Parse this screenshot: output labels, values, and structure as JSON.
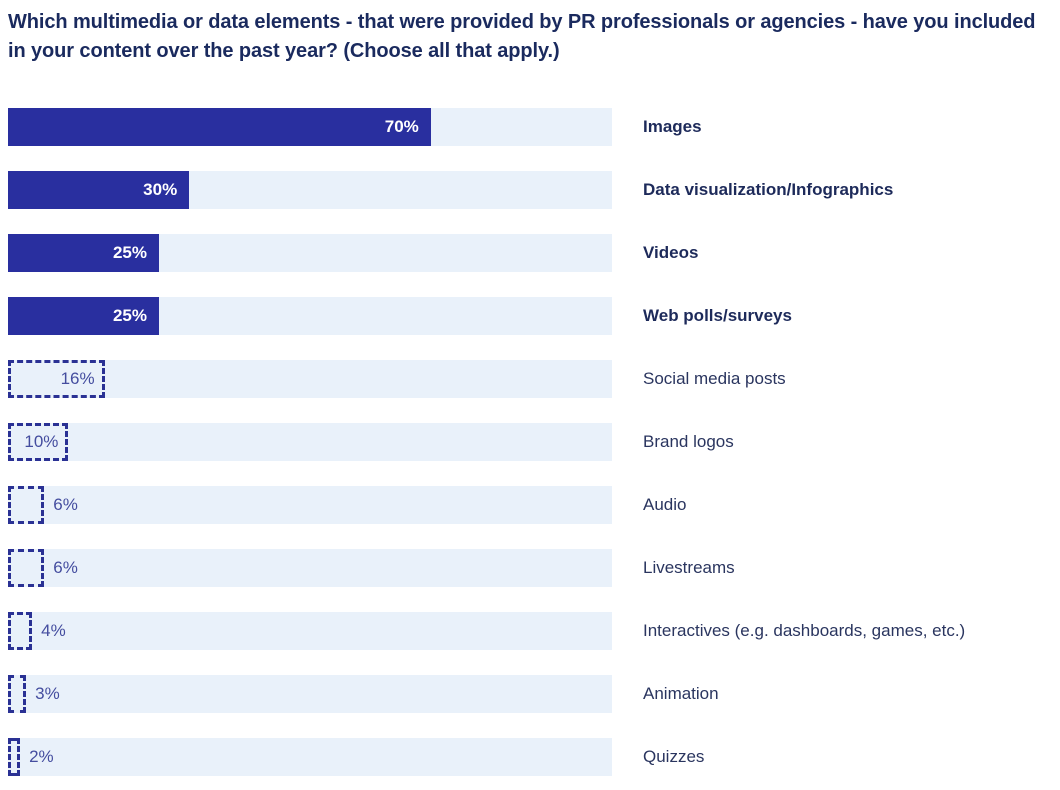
{
  "title": "Which multimedia or data elements - that were provided by PR professionals or agencies - have you included in your content over the past year? (Choose all that apply.)",
  "colors": {
    "title_text": "#1a2a5e",
    "bar_fill_solid": "#292f9f",
    "bar_track": "#e9f1fa",
    "bar_dashed_border": "#2a3194",
    "value_text_on_solid": "#ffffff",
    "value_text_dashed": "#444d9f",
    "category_bold_text": "#1d2a5a",
    "category_regular_text": "#2a355f",
    "background": "#ffffff"
  },
  "chart_data": {
    "type": "bar",
    "orientation": "horizontal",
    "title": "Which multimedia or data elements - that were provided by PR professionals or agencies - have you included in your content over the past year? (Choose all that apply.)",
    "xlabel": "",
    "ylabel": "",
    "xlim": [
      0,
      100
    ],
    "grid": false,
    "legend": false,
    "categories": [
      "Images",
      "Data visualization/Infographics",
      "Videos",
      "Web polls/surveys",
      "Social media posts",
      "Brand logos",
      "Audio",
      "Livestreams",
      "Interactives (e.g. dashboards, games, etc.)",
      "Animation",
      "Quizzes"
    ],
    "values": [
      70,
      30,
      25,
      25,
      16,
      10,
      6,
      6,
      4,
      3,
      2
    ],
    "value_labels": [
      "70%",
      "30%",
      "25%",
      "25%",
      "16%",
      "10%",
      "6%",
      "6%",
      "4%",
      "3%",
      "2%"
    ],
    "bar_styles": [
      "solid",
      "solid",
      "solid",
      "solid",
      "dashed",
      "dashed",
      "dashed",
      "dashed",
      "dashed",
      "dashed",
      "dashed"
    ]
  }
}
